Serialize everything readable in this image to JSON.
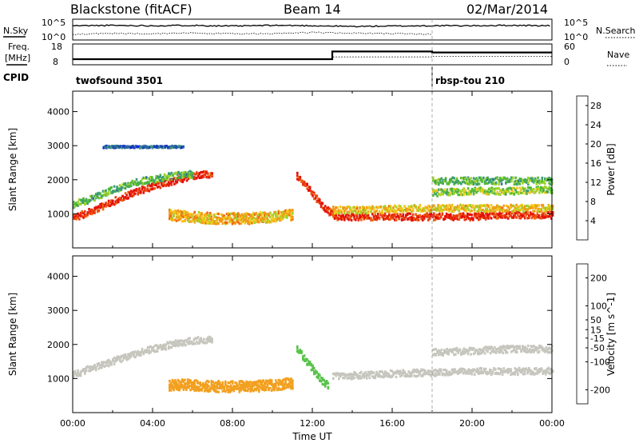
{
  "header": {
    "radar": "Blackstone (fitACF)",
    "beam": "Beam 14",
    "date": "02/Mar/2014"
  },
  "labels": {
    "nsky": "N.Sky",
    "nsearch": "N.Search",
    "freq_line1": "Freq.",
    "freq_line2": "[MHz]",
    "nave": "Nave",
    "cpid": "CPID"
  },
  "noise_axis": {
    "top": "10^5",
    "bottom": "10^0"
  },
  "freq_axis": {
    "top": "18",
    "bottom": "8"
  },
  "nave_axis": {
    "top": "60",
    "bottom": "0"
  },
  "cpid_modes": [
    {
      "name": "twofsound 3501",
      "start_hour": 0
    },
    {
      "name": "rbsp-tou 210",
      "start_hour": 18
    }
  ],
  "colors": {
    "power": [
      "#0a1ee6",
      "#1c3fb8",
      "#2c6a9c",
      "#3d9a7a",
      "#4fb93a",
      "#9fd22a",
      "#f3c81a",
      "#f29a18",
      "#ee6513",
      "#e93b0e",
      "#e30f0a"
    ],
    "velocity": [
      "#ee1c14",
      "#ef6512",
      "#f2a020",
      "#c6c6be",
      "#58c34a",
      "#2c5fc2",
      "#1c34b4"
    ]
  },
  "chart_data": [
    {
      "type": "line",
      "title": "N.Sky / N.Search",
      "xlabel": "",
      "ylabel": "",
      "xlim": [
        "00:00",
        "24:00"
      ],
      "yscale": "log",
      "ylim_ticks": [
        "10^0",
        "10^5"
      ],
      "series": [
        {
          "name": "N.Sky",
          "x": [
            0,
            2,
            4,
            6,
            8,
            10,
            12,
            14,
            16,
            18,
            20,
            22,
            24
          ],
          "values": [
            3.6,
            3.7,
            3.6,
            3.7,
            3.5,
            3.7,
            3.6,
            3.4,
            3.5,
            3.6,
            3.6,
            3.7,
            3.6
          ]
        },
        {
          "name": "N.Search",
          "x": [
            0,
            2,
            4,
            6,
            8,
            10,
            12,
            14,
            16,
            18
          ],
          "values": [
            1.2,
            1.4,
            1.3,
            1.5,
            1.3,
            1.3,
            1.7,
            1.5,
            1.4,
            1.2
          ]
        }
      ]
    },
    {
      "type": "line",
      "title": "Freq. [MHz] / Nave",
      "xlim": [
        "00:00",
        "24:00"
      ],
      "ylim": [
        8,
        18
      ],
      "ylim_right": [
        0,
        60
      ],
      "series": [
        {
          "name": "Freq.",
          "x": [
            0,
            13,
            13,
            18,
            18,
            24
          ],
          "values": [
            10.5,
            10.5,
            14.5,
            14.5,
            14.0,
            14.0
          ]
        },
        {
          "name": "Nave",
          "x": [
            0,
            13,
            13,
            18,
            18,
            24
          ],
          "values": [
            14,
            14,
            22,
            22,
            24,
            24
          ]
        }
      ]
    },
    {
      "type": "heatmap",
      "title": "Power",
      "xlabel": "",
      "ylabel": "Slant Range [km]",
      "xlim": [
        0,
        24
      ],
      "ylim": [
        0,
        4600
      ],
      "x_tick_labels": [
        "00:00",
        "04:00",
        "08:00",
        "12:00",
        "16:00",
        "20:00",
        "00:00"
      ],
      "y_ticks": [
        1000,
        2000,
        3000,
        4000
      ],
      "colorbar": {
        "label": "Power [dB]",
        "ticks": [
          4,
          8,
          12,
          16,
          20,
          24,
          28
        ],
        "range": [
          0,
          30
        ]
      },
      "features": [
        {
          "name": "band",
          "x": [
            0,
            1,
            2,
            3,
            4,
            5,
            6,
            7
          ],
          "values": [
            900,
            1150,
            1400,
            1650,
            1850,
            2000,
            2150,
            2200
          ],
          "level": 27
        },
        {
          "name": "band",
          "x": [
            0,
            1,
            2,
            3,
            4,
            5,
            6
          ],
          "values": [
            1300,
            1500,
            1750,
            1950,
            2050,
            2150,
            2200
          ],
          "level": 12
        },
        {
          "name": "band",
          "x": [
            11.2,
            11.6,
            12,
            12.4,
            12.8,
            13.2
          ],
          "values": [
            2150,
            1900,
            1600,
            1300,
            1100,
            1000
          ],
          "level": 26
        },
        {
          "name": "band",
          "x": [
            13,
            15,
            17,
            18,
            20,
            22,
            24
          ],
          "values": [
            950,
            950,
            950,
            950,
            950,
            1000,
            1000
          ],
          "level": 27
        },
        {
          "name": "band",
          "x": [
            13,
            15,
            17,
            18,
            20,
            22,
            24
          ],
          "values": [
            1150,
            1150,
            1200,
            1200,
            1200,
            1200,
            1200
          ],
          "level": 18
        },
        {
          "name": "band",
          "x": [
            18,
            20,
            22,
            24
          ],
          "values": [
            1650,
            1700,
            1700,
            1750
          ],
          "level": 14
        },
        {
          "name": "band",
          "x": [
            18,
            20,
            22,
            24
          ],
          "values": [
            2000,
            2000,
            2000,
            2000
          ],
          "level": 12
        },
        {
          "name": "patch",
          "x": [
            4.8,
            6,
            7,
            8,
            9,
            10,
            11
          ],
          "values": [
            1000,
            950,
            900,
            900,
            900,
            950,
            1000
          ],
          "level": 19
        },
        {
          "name": "line",
          "x": [
            1.5,
            3,
            4.5,
            5.5
          ],
          "values": [
            3000,
            3000,
            3000,
            3000
          ],
          "level": 6
        }
      ]
    },
    {
      "type": "heatmap",
      "title": "Velocity",
      "xlabel": "Time UT",
      "ylabel": "Slant Range [km]",
      "xlim": [
        0,
        24
      ],
      "ylim": [
        0,
        4600
      ],
      "x_tick_labels": [
        "00:00",
        "04:00",
        "08:00",
        "12:00",
        "16:00",
        "20:00",
        "00:00"
      ],
      "y_ticks": [
        1000,
        2000,
        3000,
        4000
      ],
      "colorbar": {
        "label": "Velocity [m s^-1]",
        "ticks": [
          200,
          100,
          50,
          15,
          -15,
          -50,
          -100,
          -200
        ],
        "range": [
          -250,
          250
        ]
      },
      "features": [
        {
          "name": "band",
          "x": [
            0,
            1,
            2,
            3,
            4,
            5,
            6,
            7
          ],
          "values": [
            1150,
            1350,
            1550,
            1750,
            1900,
            2050,
            2150,
            2200
          ],
          "level": 0
        },
        {
          "name": "patch",
          "x": [
            4.8,
            6,
            7,
            8,
            9,
            10,
            11
          ],
          "values": [
            850,
            850,
            800,
            800,
            800,
            850,
            900
          ],
          "level": -60
        },
        {
          "name": "band",
          "x": [
            11.2,
            11.6,
            12,
            12.4,
            12.8
          ],
          "values": [
            1900,
            1600,
            1300,
            1000,
            800
          ],
          "level": 60
        },
        {
          "name": "band",
          "x": [
            13,
            15,
            17,
            18,
            20,
            22,
            24
          ],
          "values": [
            1100,
            1150,
            1200,
            1200,
            1250,
            1250,
            1250
          ],
          "level": 0
        },
        {
          "name": "band",
          "x": [
            18,
            20,
            22,
            24
          ],
          "values": [
            1800,
            1850,
            1900,
            1900
          ],
          "level": 0
        }
      ]
    }
  ],
  "xaxis_title": "Time UT",
  "ylabel": "Slant Range [km]",
  "power_cb_label": "Power [dB]",
  "velocity_cb_label": "Velocity [m s^-1]"
}
